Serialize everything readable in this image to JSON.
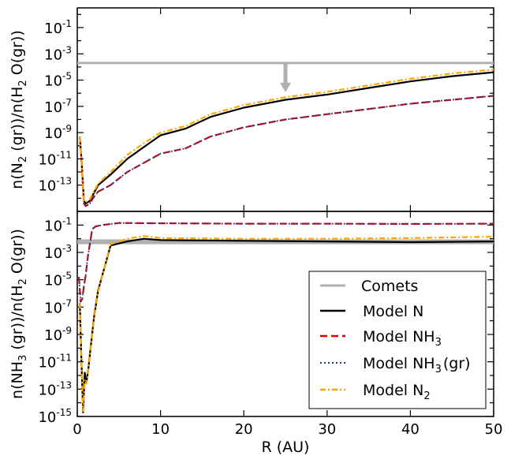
{
  "chart_data": [
    {
      "type": "line",
      "id": "top",
      "ylabel": "n(N2(gr))/n(H2O(gr))",
      "ylabel_parts": {
        "a": "n(N",
        "b": "2",
        "c": " (gr))/n(H",
        "d": "2",
        "e": " O(gr))"
      },
      "xlim": [
        0,
        50
      ],
      "ylim_log10": [
        -15,
        0.5
      ],
      "yticks": [
        {
          "base": "10",
          "exp": "-1",
          "log": -1
        },
        {
          "base": "10",
          "exp": "-3",
          "log": -3
        },
        {
          "base": "10",
          "exp": "-5",
          "log": -5
        },
        {
          "base": "10",
          "exp": "-7",
          "log": -7
        },
        {
          "base": "10",
          "exp": "-9",
          "log": -9
        },
        {
          "base": "10",
          "exp": "-11",
          "log": -11
        },
        {
          "base": "10",
          "exp": "-13",
          "log": -13
        }
      ],
      "comets_level_log10": -3.7,
      "upper_limit_arrow": {
        "x": 25,
        "from_log10": -3.7,
        "to_log10": -5.8
      },
      "series": [
        {
          "name": "Model N",
          "color": "#000000",
          "dash": "",
          "width": 2.2,
          "points": [
            [
              0.3,
              -9.3
            ],
            [
              0.5,
              -11
            ],
            [
              0.8,
              -14.2
            ],
            [
              1,
              -14.4
            ],
            [
              1.5,
              -14.2
            ],
            [
              2,
              -13.6
            ],
            [
              2.5,
              -13
            ],
            [
              4,
              -12.2
            ],
            [
              6,
              -11
            ],
            [
              8,
              -10.1
            ],
            [
              10,
              -9.2
            ],
            [
              13,
              -8.7
            ],
            [
              16,
              -7.8
            ],
            [
              20,
              -7.1
            ],
            [
              25,
              -6.5
            ],
            [
              30,
              -6.1
            ],
            [
              35,
              -5.6
            ],
            [
              40,
              -5.1
            ],
            [
              45,
              -4.7
            ],
            [
              50,
              -4.4
            ]
          ]
        },
        {
          "name": "Model NH3",
          "color": "#dd0000",
          "dash": "9,5",
          "width": 2.2,
          "points": [
            [
              0.3,
              -9.3
            ],
            [
              0.5,
              -11
            ],
            [
              0.8,
              -14.4
            ],
            [
              1,
              -14.6
            ],
            [
              1.5,
              -14.4
            ],
            [
              2,
              -13.9
            ],
            [
              2.5,
              -13.5
            ],
            [
              4,
              -13
            ],
            [
              6,
              -12
            ],
            [
              8,
              -11.3
            ],
            [
              10,
              -10.6
            ],
            [
              13,
              -10.2
            ],
            [
              16,
              -9.3
            ],
            [
              20,
              -8.6
            ],
            [
              25,
              -8
            ],
            [
              30,
              -7.6
            ],
            [
              35,
              -7.2
            ],
            [
              40,
              -6.8
            ],
            [
              45,
              -6.5
            ],
            [
              50,
              -6.2
            ]
          ]
        },
        {
          "name": "Model NH3 (gr)",
          "color": "#1a3d8f",
          "dash": "2,3",
          "width": 1.8,
          "points": [
            [
              0.3,
              -9.3
            ],
            [
              0.5,
              -11
            ],
            [
              0.8,
              -14.4
            ],
            [
              1,
              -14.6
            ],
            [
              1.5,
              -14.4
            ],
            [
              2,
              -13.9
            ],
            [
              2.5,
              -13.5
            ],
            [
              4,
              -13
            ],
            [
              6,
              -12
            ],
            [
              8,
              -11.3
            ],
            [
              10,
              -10.6
            ],
            [
              13,
              -10.2
            ],
            [
              16,
              -9.3
            ],
            [
              20,
              -8.6
            ],
            [
              25,
              -8
            ],
            [
              30,
              -7.6
            ],
            [
              35,
              -7.2
            ],
            [
              40,
              -6.8
            ],
            [
              45,
              -6.5
            ],
            [
              50,
              -6.2
            ]
          ]
        },
        {
          "name": "Model N2",
          "color": "#ffa500",
          "dash": "7,3,2,3",
          "width": 2.2,
          "points": [
            [
              0.3,
              -9.3
            ],
            [
              0.5,
              -11
            ],
            [
              0.8,
              -14.2
            ],
            [
              1,
              -14.3
            ],
            [
              1.5,
              -14.1
            ],
            [
              2,
              -13.5
            ],
            [
              2.5,
              -12.9
            ],
            [
              4,
              -12
            ],
            [
              6,
              -10.7
            ],
            [
              8,
              -9.8
            ],
            [
              10,
              -9
            ],
            [
              13,
              -8.5
            ],
            [
              16,
              -7.6
            ],
            [
              20,
              -6.9
            ],
            [
              25,
              -6.3
            ],
            [
              30,
              -5.9
            ],
            [
              35,
              -5.4
            ],
            [
              40,
              -4.9
            ],
            [
              45,
              -4.5
            ],
            [
              50,
              -4.2
            ]
          ]
        }
      ]
    },
    {
      "type": "line",
      "id": "bottom",
      "ylabel": "n(NH3(gr))/n(H2O(gr))",
      "ylabel_parts": {
        "a": "n(NH",
        "b": "3",
        "c": " (gr))/n(H",
        "d": "2",
        "e": " O(gr))"
      },
      "xlabel": "R (AU)",
      "xlim": [
        0,
        50
      ],
      "xticks": [
        "0",
        "10",
        "20",
        "30",
        "40",
        "50"
      ],
      "ylim_log10": [
        -15,
        0
      ],
      "yticks": [
        {
          "base": "10",
          "exp": "-1",
          "log": -1
        },
        {
          "base": "10",
          "exp": "-3",
          "log": -3
        },
        {
          "base": "10",
          "exp": "-5",
          "log": -5
        },
        {
          "base": "10",
          "exp": "-7",
          "log": -7
        },
        {
          "base": "10",
          "exp": "-9",
          "log": -9
        },
        {
          "base": "10",
          "exp": "-11",
          "log": -11
        },
        {
          "base": "10",
          "exp": "-13",
          "log": -13
        },
        {
          "base": "10",
          "exp": "-15",
          "log": -15
        }
      ],
      "comets_band_log10": [
        -2.4,
        -2.05
      ],
      "series": [
        {
          "name": "Model N",
          "color": "#000000",
          "dash": "",
          "width": 2.2,
          "points": [
            [
              0.3,
              -6.7
            ],
            [
              0.5,
              -11
            ],
            [
              0.7,
              -14.7
            ],
            [
              0.9,
              -11.8
            ],
            [
              1.1,
              -12.5
            ],
            [
              1.3,
              -11.7
            ],
            [
              1.6,
              -10
            ],
            [
              2,
              -7.8
            ],
            [
              2.5,
              -5.8
            ],
            [
              4,
              -2.5
            ],
            [
              6,
              -2.2
            ],
            [
              8,
              -2
            ],
            [
              10,
              -2.1
            ],
            [
              20,
              -2.15
            ],
            [
              30,
              -2.2
            ],
            [
              40,
              -2.25
            ],
            [
              50,
              -2.2
            ]
          ]
        },
        {
          "name": "Model NH3",
          "color": "#dd0000",
          "dash": "9,5",
          "width": 2.2,
          "points": [
            [
              0.2,
              -4.8
            ],
            [
              0.4,
              -6.6
            ],
            [
              0.6,
              -6.4
            ],
            [
              0.8,
              -5.5
            ],
            [
              1,
              -4.7
            ],
            [
              1.3,
              -3.2
            ],
            [
              1.8,
              -1.3
            ],
            [
              2.2,
              -1.1
            ],
            [
              3,
              -1
            ],
            [
              5,
              -0.85
            ],
            [
              10,
              -0.87
            ],
            [
              20,
              -0.9
            ],
            [
              30,
              -0.9
            ],
            [
              40,
              -0.92
            ],
            [
              50,
              -0.9
            ]
          ]
        },
        {
          "name": "Model NH3 (gr)",
          "color": "#1a3d8f",
          "dash": "2,3",
          "width": 1.8,
          "points": [
            [
              0.2,
              -4.8
            ],
            [
              0.4,
              -6.6
            ],
            [
              0.6,
              -6.4
            ],
            [
              0.8,
              -5.5
            ],
            [
              1,
              -4.7
            ],
            [
              1.3,
              -3.2
            ],
            [
              1.8,
              -1.3
            ],
            [
              2.2,
              -1.1
            ],
            [
              3,
              -1
            ],
            [
              5,
              -0.85
            ],
            [
              10,
              -0.87
            ],
            [
              20,
              -0.9
            ],
            [
              30,
              -0.9
            ],
            [
              40,
              -0.92
            ],
            [
              50,
              -0.9
            ]
          ]
        },
        {
          "name": "Model N2",
          "color": "#ffa500",
          "dash": "7,3,2,3",
          "width": 2.2,
          "points": [
            [
              0.3,
              -6.7
            ],
            [
              0.5,
              -11
            ],
            [
              0.7,
              -14.6
            ],
            [
              0.9,
              -12.3
            ],
            [
              1.1,
              -12.6
            ],
            [
              1.3,
              -11.8
            ],
            [
              1.6,
              -10.1
            ],
            [
              2,
              -7.9
            ],
            [
              2.5,
              -5.9
            ],
            [
              4,
              -2.4
            ],
            [
              6,
              -2
            ],
            [
              8,
              -1.8
            ],
            [
              10,
              -1.95
            ],
            [
              20,
              -2.0
            ],
            [
              30,
              -2.0
            ],
            [
              40,
              -1.95
            ],
            [
              50,
              -1.85
            ]
          ]
        }
      ]
    }
  ],
  "legend": {
    "placement": "bottom-right of lower panel",
    "entries": [
      {
        "label": "Comets",
        "sub": "",
        "tail": "",
        "color": "#b0b0b0",
        "dash": "",
        "width": 3
      },
      {
        "label": "Model N",
        "sub": "",
        "tail": "",
        "color": "#000000",
        "dash": "",
        "width": 2.5
      },
      {
        "label": "Model NH",
        "sub": "3",
        "tail": "",
        "color": "#dd0000",
        "dash": "9,5",
        "width": 2.5
      },
      {
        "label": "Model NH",
        "sub": "3",
        "tail": "(gr)",
        "color": "#1a3d8f",
        "dash": "2,3",
        "width": 2
      },
      {
        "label": "Model N",
        "sub": "2",
        "tail": "",
        "color": "#ffa500",
        "dash": "7,3,2,3",
        "width": 2.5
      }
    ]
  }
}
